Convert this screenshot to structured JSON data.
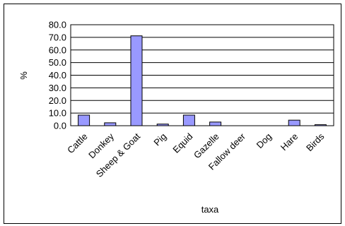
{
  "chart_data": {
    "type": "bar",
    "categories": [
      "Cattle",
      "Donkey",
      "Sheep & Goat",
      "Pig",
      "Equid",
      "Gazelle",
      "Fallow deer",
      "Dog",
      "Hare",
      "Birds"
    ],
    "values": [
      8.4,
      2.3,
      71.2,
      1.3,
      8.4,
      2.9,
      0.0,
      0.0,
      4.4,
      0.8
    ],
    "ylim": [
      0,
      80
    ],
    "yticks": [
      "0.0",
      "10.0",
      "20.0",
      "30.0",
      "40.0",
      "50.0",
      "60.0",
      "70.0",
      "80.0"
    ],
    "ylabel": "%",
    "xlabel": "taxa",
    "grid": true,
    "bar_color": "#9999ff"
  }
}
